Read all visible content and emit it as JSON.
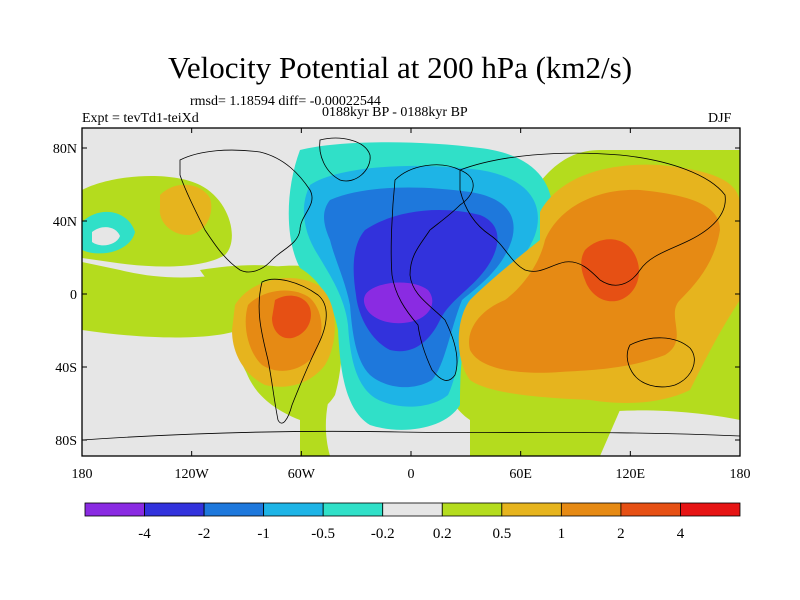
{
  "header": {
    "title": "Velocity Potential at 200 hPa (km2/s)",
    "stats": "rmsd= 1.18594 diff= -0.00022544",
    "expt": "Expt = tevTd1-teiXd",
    "period": "0188kyr BP - 0188kyr BP",
    "season": "DJF"
  },
  "map": {
    "lat_labels": [
      "80N",
      "40N",
      "0",
      "40S",
      "80S"
    ],
    "lon_labels": [
      "180",
      "120W",
      "60W",
      "0",
      "60E",
      "120E",
      "180"
    ]
  },
  "colorbar": {
    "colors": [
      "#8a2be2",
      "#3232dc",
      "#1e78dc",
      "#1eb4e6",
      "#30e0c8",
      "#e6e6e6",
      "#b4dc1e",
      "#e6b41e",
      "#e68a14",
      "#e65014",
      "#e61414"
    ],
    "labels": [
      "-4",
      "-2",
      "-1",
      "-0.5",
      "-0.2",
      "0.2",
      "0.5",
      "1",
      "2",
      "4"
    ]
  }
}
